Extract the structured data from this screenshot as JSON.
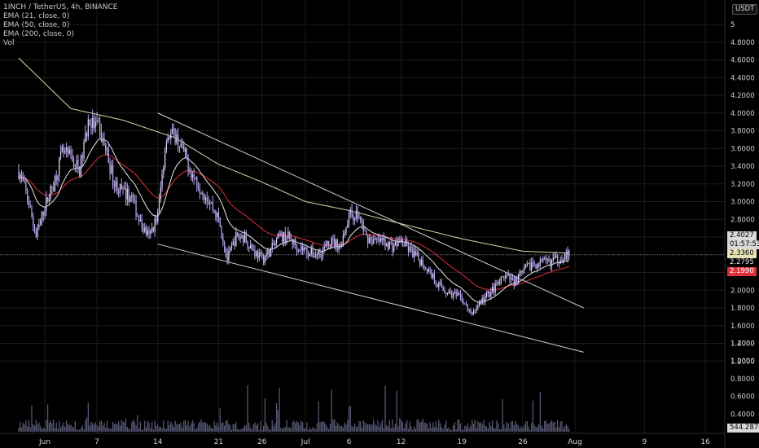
{
  "header": {
    "symbol_line": "1INCH / TetherUS, 4h, BINANCE",
    "indicators": [
      "EMA (21, close, 0)",
      "EMA (50, close, 0)",
      "EMA (200, close, 0)",
      "Vol"
    ]
  },
  "price_scale": {
    "currency": "USDT"
  },
  "tags": {
    "last_price": "2.4027",
    "countdown": "01:57:53",
    "ema21": "2.3360",
    "ema50_label": "2.2795",
    "ema50": "2.1990",
    "volume": "544.287K"
  },
  "colors": {
    "background": "#000000",
    "candle_body": "#b9a6ef",
    "ema21": "#e8e8e8",
    "ema50": "#e0303a",
    "ema200": "#d9d6a6",
    "trendline": "#d0d0d0",
    "volume": "#5a5a78"
  },
  "chart_data": {
    "type": "candlestick",
    "title": "1INCH / TetherUS, 4h, BINANCE",
    "y_axis": {
      "unit": "USDT",
      "ticks": [
        1.2,
        1.4,
        1.6,
        1.8,
        2.0,
        2.2,
        2.4,
        2.6,
        2.8,
        3.0,
        3.2,
        3.4,
        3.6,
        3.8,
        4.0,
        4.2,
        4.4,
        4.6,
        4.8,
        5.0
      ],
      "tick_labels": [
        "1.2000",
        "1.4000",
        "1.6000",
        "1.8000",
        "2.0000",
        "2.2000",
        "2.4000",
        "2.6000",
        "2.8000",
        "3.0000",
        "3.2000",
        "3.4000",
        "3.6000",
        "3.8000",
        "4.0000",
        "4.2000",
        "4.4000",
        "4.6000",
        "4.8000",
        "5"
      ],
      "volume_ticks": [
        0.4,
        0.6,
        0.8,
        1.0,
        1.2
      ],
      "volume_tick_labels": [
        "0.4000",
        "0.6000",
        "0.8000",
        "1.0000",
        "1.2000"
      ]
    },
    "x_axis": {
      "ticks": [
        "2021-06-01",
        "2021-06-07",
        "2021-06-14",
        "2021-06-21",
        "2021-06-26",
        "2021-07-01",
        "2021-07-06",
        "2021-07-12",
        "2021-07-19",
        "2021-07-26",
        "2021-08-01",
        "2021-08-09",
        "2021-08-16"
      ],
      "tick_labels": [
        "Jun",
        "7",
        "14",
        "21",
        "26",
        "Jul",
        "6",
        "12",
        "19",
        "26",
        "Aug",
        "9",
        "16"
      ]
    },
    "price_path": [
      [
        "2021-05-29",
        3.35
      ],
      [
        "2021-05-30",
        3.05
      ],
      [
        "2021-05-31",
        2.6
      ],
      [
        "2021-06-01",
        2.95
      ],
      [
        "2021-06-02",
        3.2
      ],
      [
        "2021-06-03",
        3.55
      ],
      [
        "2021-06-04",
        3.5
      ],
      [
        "2021-06-05",
        3.35
      ],
      [
        "2021-06-06",
        3.9
      ],
      [
        "2021-06-07",
        3.85
      ],
      [
        "2021-06-08",
        3.6
      ],
      [
        "2021-06-09",
        3.2
      ],
      [
        "2021-06-10",
        3.1
      ],
      [
        "2021-06-11",
        3.05
      ],
      [
        "2021-06-12",
        2.75
      ],
      [
        "2021-06-13",
        2.6
      ],
      [
        "2021-06-14",
        2.85
      ],
      [
        "2021-06-15",
        3.75
      ],
      [
        "2021-06-16",
        3.75
      ],
      [
        "2021-06-17",
        3.55
      ],
      [
        "2021-06-18",
        3.3
      ],
      [
        "2021-06-19",
        3.15
      ],
      [
        "2021-06-20",
        3.0
      ],
      [
        "2021-06-21",
        2.8
      ],
      [
        "2021-06-22",
        2.35
      ],
      [
        "2021-06-23",
        2.6
      ],
      [
        "2021-06-24",
        2.6
      ],
      [
        "2021-06-25",
        2.45
      ],
      [
        "2021-06-26",
        2.35
      ],
      [
        "2021-06-27",
        2.45
      ],
      [
        "2021-06-28",
        2.6
      ],
      [
        "2021-06-29",
        2.6
      ],
      [
        "2021-06-30",
        2.5
      ],
      [
        "2021-07-01",
        2.45
      ],
      [
        "2021-07-02",
        2.4
      ],
      [
        "2021-07-03",
        2.45
      ],
      [
        "2021-07-04",
        2.55
      ],
      [
        "2021-07-05",
        2.5
      ],
      [
        "2021-07-06",
        2.85
      ],
      [
        "2021-07-07",
        2.85
      ],
      [
        "2021-07-08",
        2.6
      ],
      [
        "2021-07-09",
        2.55
      ],
      [
        "2021-07-10",
        2.55
      ],
      [
        "2021-07-11",
        2.5
      ],
      [
        "2021-07-12",
        2.55
      ],
      [
        "2021-07-13",
        2.45
      ],
      [
        "2021-07-14",
        2.35
      ],
      [
        "2021-07-15",
        2.25
      ],
      [
        "2021-07-16",
        2.1
      ],
      [
        "2021-07-17",
        2.0
      ],
      [
        "2021-07-18",
        1.95
      ],
      [
        "2021-07-19",
        1.9
      ],
      [
        "2021-07-20",
        1.72
      ],
      [
        "2021-07-21",
        1.85
      ],
      [
        "2021-07-22",
        1.95
      ],
      [
        "2021-07-23",
        2.05
      ],
      [
        "2021-07-24",
        2.15
      ],
      [
        "2021-07-25",
        2.1
      ],
      [
        "2021-07-26",
        2.2
      ],
      [
        "2021-07-27",
        2.3
      ],
      [
        "2021-07-28",
        2.3
      ],
      [
        "2021-07-29",
        2.32
      ],
      [
        "2021-07-30",
        2.35
      ],
      [
        "2021-07-31",
        2.4
      ]
    ],
    "ema200_path": [
      [
        "2021-05-29",
        4.62
      ],
      [
        "2021-06-04",
        4.05
      ],
      [
        "2021-06-10",
        3.92
      ],
      [
        "2021-06-16",
        3.72
      ],
      [
        "2021-06-21",
        3.42
      ],
      [
        "2021-06-26",
        3.22
      ],
      [
        "2021-07-01",
        3.0
      ],
      [
        "2021-07-06",
        2.9
      ],
      [
        "2021-07-12",
        2.75
      ],
      [
        "2021-07-19",
        2.58
      ],
      [
        "2021-07-26",
        2.44
      ],
      [
        "2021-07-31",
        2.42
      ]
    ],
    "trendlines": [
      {
        "from": [
          "2021-06-14",
          4.0
        ],
        "to": [
          "2021-08-02",
          1.8
        ]
      },
      {
        "from": [
          "2021-06-14",
          2.52
        ],
        "to": [
          "2021-08-02",
          1.3
        ]
      }
    ]
  }
}
